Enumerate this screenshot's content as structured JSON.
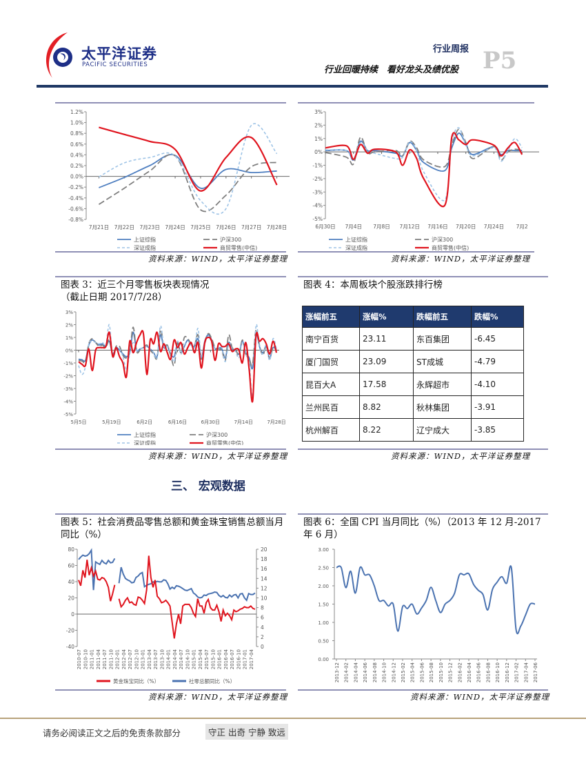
{
  "header": {
    "brand_cn": "太平洋证券",
    "brand_en": "PACIFIC SECURITIES",
    "report_type": "行业周报",
    "report_title": "行业回暖持续　看好龙头及绩优股",
    "page_number": "P5",
    "colors": {
      "logo_red": "#e31e24",
      "logo_blue": "#1e2f87",
      "rule": "#1f3864"
    }
  },
  "legend_labels": {
    "sh": "上证综指",
    "hs300": "沪深300",
    "sz": "深证成指",
    "retail": "商贸零售(中信)"
  },
  "source_text": "资料来源：WIND，太平洋证券整理",
  "chart_data": [
    {
      "id": "chart1",
      "type": "line",
      "x": [
        "7月21日",
        "7月22日",
        "7月23日",
        "7月24日",
        "7月25日",
        "7月26日",
        "7月27日",
        "7月28日"
      ],
      "y_ticks": [
        "1.2%",
        "1.0%",
        "0.8%",
        "0.6%",
        "0.4%",
        "0.2%",
        "0.0%",
        "-0.2%",
        "-0.4%",
        "-0.6%",
        "-0.8%"
      ],
      "ylim": [
        -0.8,
        1.2
      ],
      "legend": "bottom",
      "series": [
        {
          "name": "上证综指",
          "color": "#4f7fc0",
          "values": [
            -0.21,
            -0.02,
            0.2,
            0.39,
            -0.22,
            0.13,
            0.07,
            0.1
          ]
        },
        {
          "name": "沪深300",
          "color": "#7f7f7f",
          "values": [
            -0.52,
            -0.22,
            0.1,
            0.38,
            -0.62,
            -0.35,
            0.18,
            0.26
          ]
        },
        {
          "name": "深证成指",
          "color": "#9dc3e6",
          "values": [
            -0.01,
            0.25,
            0.35,
            0.38,
            -0.45,
            -0.6,
            0.95,
            0.42
          ]
        },
        {
          "name": "商贸零售(中信)",
          "color": "#e0141e",
          "values": [
            0.91,
            0.78,
            0.65,
            0.5,
            -0.27,
            0.35,
            0.72,
            -0.16
          ]
        }
      ]
    },
    {
      "id": "chart2",
      "type": "line",
      "x": [
        "6/30",
        "7/3",
        "7/4",
        "7/5",
        "7/6",
        "7/7",
        "7/10",
        "7/11",
        "7/12",
        "7/13",
        "7/14",
        "7/17",
        "7/18",
        "7/19",
        "7/20",
        "7/21",
        "7/24",
        "7/25",
        "7/26",
        "7/27",
        "7/28"
      ],
      "x_tick_labels": [
        "6月30日",
        "7月4日",
        "7月8日",
        "7月12日",
        "7月16日",
        "7月20日",
        "7月24日",
        "7月2"
      ],
      "y_ticks": [
        "3%",
        "2%",
        "1%",
        "0%",
        "-1%",
        "-2%",
        "-3%",
        "-4%",
        "-5%"
      ],
      "ylim": [
        -5,
        3
      ],
      "legend": "bottom",
      "series": [
        {
          "name": "上证综指",
          "color": "#4f7fc0",
          "values": [
            0.1,
            0.1,
            -0.6,
            0.8,
            0.1,
            0.1,
            -0.1,
            -0.3,
            0.7,
            0.1,
            -0.8,
            -1.4,
            0.3,
            1.4,
            0.6,
            -0.2,
            0.4,
            -0.2,
            0.1,
            0.1,
            0.1
          ]
        },
        {
          "name": "沪深300",
          "color": "#7f7f7f",
          "values": [
            -0.05,
            -0.4,
            -0.9,
            1.1,
            -0.1,
            0.0,
            0.1,
            -0.3,
            0.8,
            0.3,
            -0.6,
            -1.1,
            0.5,
            1.7,
            0.7,
            -0.5,
            0.4,
            -0.6,
            0.0,
            0.2,
            0.1
          ]
        },
        {
          "name": "深证成指",
          "color": "#9dc3e6",
          "values": [
            0.15,
            0.1,
            -0.5,
            0.7,
            0.1,
            -0.1,
            -0.5,
            -0.4,
            0.75,
            0.1,
            -1.5,
            -3.6,
            0.7,
            1.8,
            0.5,
            -0.3,
            0.3,
            -0.7,
            0.1,
            1.0,
            0.3
          ]
        },
        {
          "name": "商贸零售(中信)",
          "color": "#e0141e",
          "values": [
            0.3,
            0.45,
            -0.55,
            0.55,
            -0.1,
            0.2,
            0.0,
            -1.0,
            0.15,
            -0.5,
            -2.0,
            -4.0,
            1.1,
            0.9,
            0.55,
            0.9,
            0.5,
            -0.3,
            0.3,
            0.7,
            -0.2
          ]
        }
      ]
    },
    {
      "id": "chart3",
      "type": "line",
      "title": "图表 3：近三个月零售板块表现情况",
      "subtitle": "（截止日期 2017/7/28）",
      "x_tick_labels": [
        "5月5日",
        "5月19日",
        "6月2日",
        "6月16日",
        "6月30日",
        "7月14日",
        "7月28日"
      ],
      "y_ticks": [
        "3%",
        "2%",
        "1%",
        "0%",
        "-1%",
        "-2%",
        "-3%",
        "-4%",
        "-5%"
      ],
      "ylim": [
        -5,
        3
      ],
      "legend": "bottom",
      "series": [
        {
          "name": "上证综指",
          "color": "#4f7fc0",
          "values": [
            -0.7,
            -0.75,
            -0.8,
            0.4,
            0.8,
            0.6,
            0.4,
            0.5,
            0.3,
            0.7,
            -0.3,
            0.2,
            0.0,
            -0.3,
            -0.5,
            -0.2,
            1.4,
            0.0,
            0.1,
            0.2,
            0.3,
            0.1,
            -0.2,
            -0.5,
            1.2,
            0.2,
            0.3,
            -0.3,
            -0.5,
            0.5,
            -0.2,
            0.3,
            0.8,
            0.4,
            0.3,
            0.9,
            -0.6,
            0.7,
            1.2,
            0.8,
            0.1,
            0.2,
            0.1,
            -0.6,
            0.6,
            0.1,
            0.0,
            -0.3,
            0.7,
            -0.2,
            -0.6,
            -1.4,
            1.3,
            0.3,
            -0.2,
            0.3,
            -0.6,
            0.2,
            0.0
          ]
        },
        {
          "name": "沪深300",
          "color": "#7f7f7f",
          "values": [
            -0.8,
            -0.85,
            -0.9,
            0.5,
            0.9,
            0.6,
            0.3,
            0.4,
            0.2,
            0.8,
            -0.4,
            0.3,
            0.3,
            -0.4,
            -0.6,
            -0.1,
            1.8,
            -0.1,
            0.0,
            0.2,
            0.4,
            0.0,
            -0.3,
            -0.6,
            1.6,
            0.3,
            0.4,
            -0.4,
            -1.2,
            0.6,
            -0.2,
            1.0,
            0.9,
            0.5,
            0.4,
            1.2,
            -0.7,
            0.6,
            1.3,
            0.9,
            0.2,
            0.1,
            0.0,
            -0.8,
            1.2,
            0.2,
            0.1,
            -0.4,
            0.8,
            -0.3,
            -0.7,
            -1.1,
            1.6,
            0.4,
            -0.4,
            0.3,
            -0.7,
            0.3,
            0.1
          ]
        },
        {
          "name": "深证成指",
          "color": "#9dc3e6",
          "values": [
            -1.2,
            -1.9,
            -1.3,
            0.5,
            0.7,
            0.6,
            0.5,
            0.6,
            0.4,
            2.0,
            -0.5,
            0.1,
            0.1,
            -0.5,
            -1.5,
            -0.3,
            0.6,
            0.0,
            0.1,
            0.2,
            0.3,
            0.1,
            -0.2,
            -0.6,
            1.9,
            0.3,
            0.3,
            -0.2,
            -0.9,
            0.7,
            -0.3,
            0.4,
            0.7,
            0.4,
            0.2,
            1.7,
            -0.6,
            0.5,
            1.1,
            0.6,
            0.1,
            0.2,
            0.2,
            -0.9,
            0.5,
            0.1,
            -0.1,
            -0.6,
            0.6,
            -0.3,
            -1.0,
            -3.6,
            1.9,
            0.2,
            -0.3,
            0.4,
            -0.8,
            0.9,
            0.1
          ]
        },
        {
          "name": "商贸零售(中信)",
          "color": "#e0141e",
          "values": [
            -0.9,
            -1.1,
            -1.2,
            0.1,
            -1.6,
            0.0,
            0.2,
            0.2,
            0.3,
            1.4,
            -0.5,
            0.2,
            -0.5,
            -1.0,
            -2.1,
            0.7,
            -0.2,
            0.6,
            1.2,
            1.3,
            -1.9,
            0.8,
            0.5,
            1.4,
            -0.1,
            0.5,
            -0.2,
            -0.7,
            0.8,
            0.2,
            0.6,
            -0.3,
            0.2,
            0.6,
            -0.2,
            0.6,
            -1.4,
            0.6,
            1.0,
            0.7,
            -0.8,
            0.5,
            0.3,
            0.3,
            0.5,
            -0.1,
            0.1,
            0.0,
            -1.0,
            0.6,
            -1.5,
            -4.0,
            1.1,
            0.7,
            0.9,
            0.5,
            -0.3,
            0.7,
            -0.2
          ]
        }
      ]
    },
    {
      "id": "chart5",
      "type": "line",
      "title": "图表 5：社会消费品零售总额和黄金珠宝销售总额当月同比（%）",
      "x_start": "2010-07",
      "x_tick_labels": [
        "2010-07",
        "2010-10",
        "2011-01",
        "2011-04",
        "2011-07",
        "2011-10",
        "2012-01",
        "2012-04",
        "2012-07",
        "2012-10",
        "2013-01",
        "2013-04",
        "2013-07",
        "2013-10",
        "2014-01",
        "2014-04",
        "2014-07",
        "2014-10",
        "2015-01",
        "2015-04",
        "2015-07",
        "2015-10",
        "2016-01",
        "2016-04",
        "2016-07",
        "2016-10",
        "2017-01",
        "2017-04"
      ],
      "y_ticks_left": [
        "80",
        "60",
        "40",
        "20",
        "0",
        "-20",
        "-40"
      ],
      "y_ticks_right": [
        "20",
        "18",
        "16",
        "14",
        "12",
        "10",
        "8",
        "6",
        "4",
        "2",
        "0"
      ],
      "ylim_left": [
        -40,
        80
      ],
      "ylim_right": [
        0,
        20
      ],
      "legend": "bottom",
      "series": [
        {
          "name": "黄金珠宝同比（%）",
          "axis": "left",
          "color": "#e0141e",
          "values": [
            42,
            35,
            54,
            45,
            67,
            48,
            57,
            47,
            53,
            43,
            42,
            45,
            44,
            40,
            33,
            16,
            25,
            36,
            null,
            19,
            9,
            12,
            17,
            20,
            14,
            15,
            12,
            11,
            21,
            20,
            17,
            13,
            30,
            72,
            45,
            33,
            42,
            22,
            19,
            14,
            15,
            17,
            14,
            10,
            -10,
            -30,
            -12,
            0,
            -12,
            10,
            12,
            12,
            12,
            8,
            1,
            -3,
            19,
            10,
            10,
            1,
            14,
            18,
            8,
            5,
            5,
            11,
            3,
            -9,
            5,
            -2,
            1,
            -2,
            -7,
            5,
            3,
            4,
            6,
            7,
            9,
            8,
            8,
            10,
            7,
            6
          ]
        },
        {
          "name": "社零总额同比（%）",
          "axis": "right",
          "color": "#4a72b0",
          "values": [
            17.9,
            18.4,
            18.8,
            18.6,
            18.7,
            19.1,
            19.8,
            11.6,
            17.4,
            17.1,
            16.9,
            17.7,
            17.2,
            17.0,
            17.7,
            17.2,
            17.3,
            18.1,
            null,
            13.0,
            16.3,
            14.9,
            14.0,
            13.7,
            13.5,
            13.1,
            13.2,
            14.2,
            14.5,
            15.0,
            15.2,
            12.3,
            12.6,
            12.8,
            12.9,
            13.3,
            13.2,
            13.4,
            13.3,
            13.3,
            13.7,
            13.6,
            12.9,
            11.8,
            12.2,
            11.9,
            12.5,
            12.4,
            12.2,
            11.9,
            11.6,
            11.5,
            11.7,
            11.9,
            11.0,
            10.7,
            10.2,
            10.0,
            10.1,
            10.6,
            10.5,
            10.8,
            10.9,
            11.0,
            11.2,
            11.1,
            10.5,
            10.2,
            10.5,
            10.1,
            10.0,
            10.6,
            10.2,
            10.6,
            10.7,
            10.0,
            10.8,
            10.9,
            10.0,
            9.5,
            10.9,
            10.7,
            10.7,
            11.0
          ]
        }
      ]
    },
    {
      "id": "chart6",
      "type": "line",
      "title": "图表 6：全国 CPI 当月同比（%）（2013 年 12 月-2017 年 6 月）",
      "x_start": "2013-12",
      "x_tick_labels": [
        "2013-12",
        "2014-02",
        "2014-04",
        "2014-06",
        "2014-08",
        "2014-10",
        "2014-12",
        "2015-02",
        "2015-04",
        "2015-06",
        "2015-08",
        "2015-10",
        "2015-12",
        "2016-02",
        "2016-04",
        "2016-06",
        "2016-08",
        "2016-10",
        "2016-12",
        "2017-02",
        "2017-04",
        "2017-06"
      ],
      "y_ticks": [
        "3.00",
        "2.50",
        "2.00",
        "1.50",
        "1.00",
        "0.50",
        "0.00"
      ],
      "ylim": [
        0,
        3
      ],
      "series": [
        {
          "color": "#4a72b0",
          "values": [
            2.5,
            2.5,
            1.95,
            2.4,
            1.8,
            2.5,
            2.3,
            2.3,
            2.0,
            1.6,
            1.6,
            1.45,
            1.5,
            0.76,
            1.43,
            1.38,
            1.5,
            1.23,
            1.39,
            1.6,
            1.96,
            1.6,
            1.27,
            1.5,
            1.6,
            1.8,
            2.3,
            2.3,
            2.33,
            2.04,
            1.88,
            1.76,
            1.34,
            1.9,
            2.1,
            2.25,
            2.07,
            2.5,
            0.8,
            0.9,
            1.2,
            1.5,
            1.5
          ]
        }
      ]
    }
  ],
  "table4": {
    "title": "图表 4：本周板块个股涨跌排行榜",
    "headers": [
      "涨幅前五",
      "涨幅%",
      "跌幅前五",
      "跌幅%"
    ],
    "rows": [
      [
        "南宁百货",
        "23.11",
        "东百集团",
        "-6.45"
      ],
      [
        "厦门国贸",
        "23.09",
        "ST成城",
        "-4.79"
      ],
      [
        "昆百大A",
        "17.58",
        "永辉超市",
        "-4.10"
      ],
      [
        "兰州民百",
        "8.82",
        "秋林集团",
        "-3.91"
      ],
      [
        "杭州解百",
        "8.22",
        "辽宁成大",
        "-3.85"
      ]
    ]
  },
  "section_heading": "三、 宏观数据",
  "footer": {
    "disclaimer": "请务必阅读正文之后的免责条款部分",
    "motto": "守正 出奇 宁静 致远"
  }
}
